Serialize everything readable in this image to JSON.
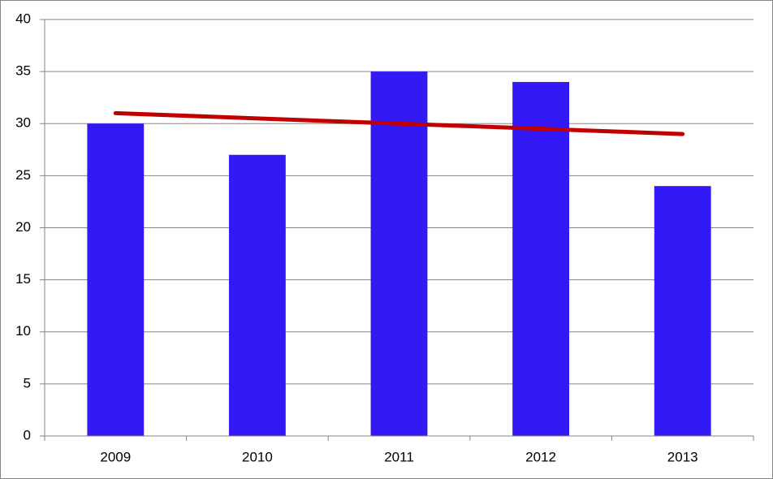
{
  "chart_data": {
    "type": "bar",
    "categories": [
      "2009",
      "2010",
      "2011",
      "2012",
      "2013"
    ],
    "values": [
      30,
      27,
      35,
      34,
      24
    ],
    "color": "#3319f5",
    "trendline": {
      "color": "#c00000",
      "values": [
        31,
        30.5,
        30,
        29.5,
        29
      ]
    },
    "ylim": [
      0,
      40
    ],
    "yticks": [
      0,
      5,
      10,
      15,
      20,
      25,
      30,
      35,
      40
    ],
    "grid": true
  }
}
